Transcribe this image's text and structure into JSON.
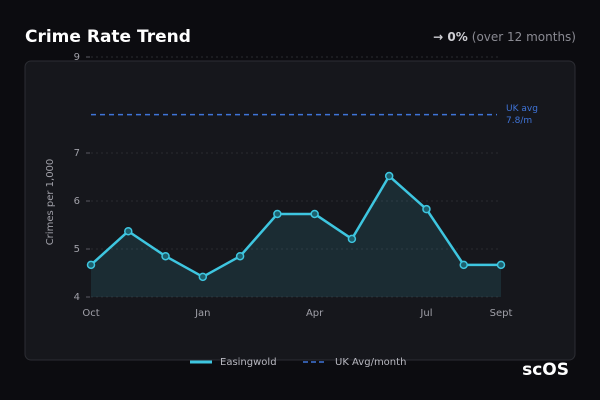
{
  "chart_data": {
    "type": "line",
    "title": "Crime Rate Trend",
    "change": "→ 0%",
    "change_note": "(over 12 months)",
    "y_label": "Crimes per 1,000",
    "categories": [
      "Oct",
      null,
      null,
      "Jan",
      null,
      null,
      "Apr",
      null,
      null,
      "Jul",
      null,
      "Sept"
    ],
    "series": [
      {
        "name": "Easingwold",
        "color": "#3ec6e0",
        "values": [
          4.67,
          5.37,
          4.85,
          4.42,
          4.85,
          5.73,
          5.73,
          5.21,
          6.52,
          5.83,
          4.67,
          4.67
        ]
      }
    ],
    "reference_line": {
      "name": "UK Avg/month",
      "value": 7.8,
      "label": "UK avg",
      "value_label": "7.8/m",
      "color": "#3f74d8"
    },
    "ylim": [
      4,
      9.2
    ],
    "yticks": [
      4,
      5,
      6,
      7,
      9
    ],
    "grid": true
  },
  "logo": "scOS"
}
